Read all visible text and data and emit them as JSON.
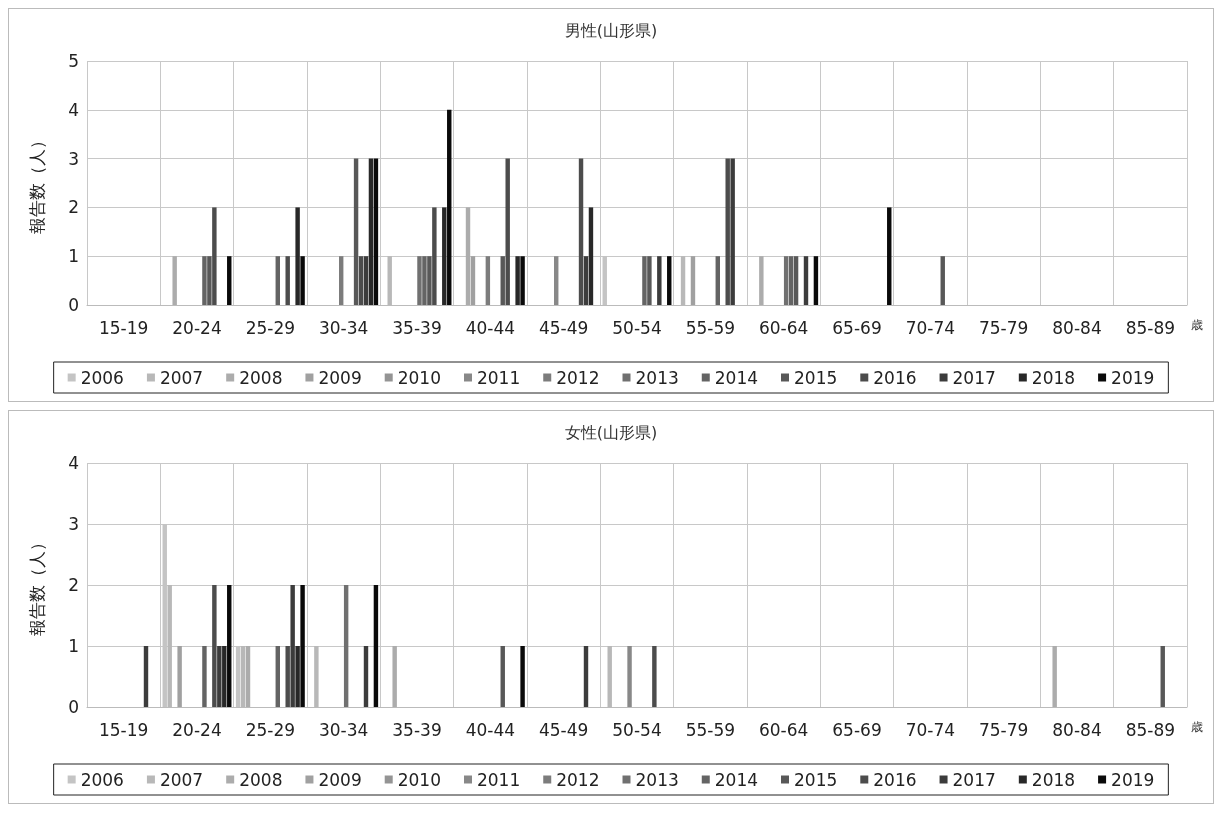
{
  "chart_data": [
    {
      "type": "bar",
      "title": "男性(山形県)",
      "ylabel": "報告数（人）",
      "xlabel": "歳",
      "categories": [
        "15-19",
        "20-24",
        "25-29",
        "30-34",
        "35-39",
        "40-44",
        "45-49",
        "50-54",
        "55-59",
        "60-64",
        "65-69",
        "70-74",
        "75-79",
        "80-84",
        "85-89"
      ],
      "ylim": [
        0,
        5
      ],
      "yticks": [
        0,
        1,
        2,
        3,
        4,
        5
      ],
      "grid": true,
      "legend": "bottom",
      "series": [
        {
          "name": "2006",
          "color": "#c4c4c4",
          "values": [
            0,
            0,
            0,
            0,
            0,
            0,
            0,
            1,
            0,
            0,
            0,
            0,
            0,
            0,
            0
          ]
        },
        {
          "name": "2007",
          "color": "#b8b8b8",
          "values": [
            0,
            0,
            0,
            0,
            1,
            0,
            0,
            0,
            1,
            0,
            0,
            0,
            0,
            0,
            0
          ]
        },
        {
          "name": "2008",
          "color": "#acacac",
          "values": [
            0,
            1,
            0,
            0,
            0,
            2,
            0,
            0,
            0,
            1,
            0,
            0,
            0,
            0,
            0
          ]
        },
        {
          "name": "2009",
          "color": "#a0a0a0",
          "values": [
            0,
            0,
            0,
            0,
            0,
            1,
            0,
            0,
            1,
            0,
            0,
            0,
            0,
            0,
            0
          ]
        },
        {
          "name": "2010",
          "color": "#949494",
          "values": [
            0,
            0,
            0,
            0,
            0,
            0,
            0,
            0,
            0,
            0,
            0,
            0,
            0,
            0,
            0
          ]
        },
        {
          "name": "2011",
          "color": "#888888",
          "values": [
            0,
            0,
            0,
            0,
            0,
            0,
            1,
            0,
            0,
            0,
            0,
            0,
            0,
            0,
            0
          ]
        },
        {
          "name": "2012",
          "color": "#7c7c7c",
          "values": [
            0,
            0,
            0,
            1,
            0,
            1,
            0,
            0,
            0,
            0,
            0,
            0,
            0,
            0,
            0
          ]
        },
        {
          "name": "2013",
          "color": "#707070",
          "values": [
            0,
            0,
            0,
            0,
            1,
            0,
            0,
            0,
            0,
            1,
            0,
            0,
            0,
            0,
            0
          ]
        },
        {
          "name": "2014",
          "color": "#646464",
          "values": [
            0,
            1,
            1,
            0,
            1,
            0,
            0,
            1,
            1,
            1,
            0,
            0,
            0,
            0,
            0
          ]
        },
        {
          "name": "2015",
          "color": "#585858",
          "values": [
            0,
            1,
            0,
            3,
            1,
            1,
            0,
            1,
            0,
            1,
            0,
            1,
            0,
            0,
            0
          ]
        },
        {
          "name": "2016",
          "color": "#4c4c4c",
          "values": [
            0,
            2,
            1,
            1,
            2,
            3,
            3,
            0,
            3,
            0,
            0,
            0,
            0,
            0,
            0
          ]
        },
        {
          "name": "2017",
          "color": "#3c3c3c",
          "values": [
            0,
            0,
            0,
            1,
            0,
            0,
            1,
            1,
            3,
            1,
            0,
            0,
            0,
            0,
            0
          ]
        },
        {
          "name": "2018",
          "color": "#282828",
          "values": [
            0,
            0,
            2,
            3,
            2,
            1,
            2,
            0,
            0,
            0,
            0,
            0,
            0,
            0,
            0
          ]
        },
        {
          "name": "2019",
          "color": "#0a0a0a",
          "values": [
            0,
            1,
            1,
            3,
            4,
            1,
            0,
            1,
            0,
            1,
            2,
            0,
            0,
            0,
            0
          ]
        }
      ]
    },
    {
      "type": "bar",
      "title": "女性(山形県)",
      "ylabel": "報告数（人）",
      "xlabel": "歳",
      "categories": [
        "15-19",
        "20-24",
        "25-29",
        "30-34",
        "35-39",
        "40-44",
        "45-49",
        "50-54",
        "55-59",
        "60-64",
        "65-69",
        "70-74",
        "75-79",
        "80-84",
        "85-89"
      ],
      "ylim": [
        0,
        4
      ],
      "yticks": [
        0,
        1,
        2,
        3,
        4
      ],
      "grid": true,
      "legend": "bottom",
      "series": [
        {
          "name": "2006",
          "color": "#c4c4c4",
          "values": [
            0,
            3,
            1,
            0,
            0,
            0,
            0,
            0,
            0,
            0,
            0,
            0,
            0,
            0,
            0
          ]
        },
        {
          "name": "2007",
          "color": "#b8b8b8",
          "values": [
            0,
            2,
            1,
            1,
            0,
            0,
            0,
            1,
            0,
            0,
            0,
            0,
            0,
            0,
            0
          ]
        },
        {
          "name": "2008",
          "color": "#acacac",
          "values": [
            0,
            0,
            1,
            0,
            1,
            0,
            0,
            0,
            0,
            0,
            0,
            0,
            0,
            1,
            0
          ]
        },
        {
          "name": "2009",
          "color": "#a0a0a0",
          "values": [
            0,
            1,
            0,
            0,
            0,
            0,
            0,
            0,
            0,
            0,
            0,
            0,
            0,
            0,
            0
          ]
        },
        {
          "name": "2010",
          "color": "#949494",
          "values": [
            0,
            0,
            0,
            0,
            0,
            0,
            0,
            0,
            0,
            0,
            0,
            0,
            0,
            0,
            0
          ]
        },
        {
          "name": "2011",
          "color": "#888888",
          "values": [
            0,
            0,
            0,
            0,
            0,
            0,
            0,
            1,
            0,
            0,
            0,
            0,
            0,
            0,
            0
          ]
        },
        {
          "name": "2012",
          "color": "#7c7c7c",
          "values": [
            0,
            0,
            0,
            0,
            0,
            0,
            0,
            0,
            0,
            0,
            0,
            0,
            0,
            0,
            0
          ]
        },
        {
          "name": "2013",
          "color": "#707070",
          "values": [
            0,
            0,
            0,
            2,
            0,
            0,
            0,
            0,
            0,
            0,
            0,
            0,
            0,
            0,
            0
          ]
        },
        {
          "name": "2014",
          "color": "#646464",
          "values": [
            0,
            1,
            1,
            0,
            0,
            0,
            0,
            0,
            0,
            0,
            0,
            0,
            0,
            0,
            0
          ]
        },
        {
          "name": "2015",
          "color": "#585858",
          "values": [
            0,
            0,
            0,
            0,
            0,
            1,
            0,
            0,
            0,
            0,
            0,
            0,
            0,
            0,
            1
          ]
        },
        {
          "name": "2016",
          "color": "#4c4c4c",
          "values": [
            0,
            2,
            1,
            0,
            0,
            0,
            0,
            1,
            0,
            0,
            0,
            0,
            0,
            0,
            0
          ]
        },
        {
          "name": "2017",
          "color": "#3c3c3c",
          "values": [
            1,
            1,
            2,
            1,
            0,
            0,
            1,
            0,
            0,
            0,
            0,
            0,
            0,
            0,
            0
          ]
        },
        {
          "name": "2018",
          "color": "#282828",
          "values": [
            0,
            1,
            1,
            0,
            0,
            0,
            0,
            0,
            0,
            0,
            0,
            0,
            0,
            0,
            0
          ]
        },
        {
          "name": "2019",
          "color": "#0a0a0a",
          "values": [
            0,
            2,
            2,
            2,
            0,
            1,
            0,
            0,
            0,
            0,
            0,
            0,
            0,
            0,
            0
          ]
        }
      ]
    }
  ]
}
